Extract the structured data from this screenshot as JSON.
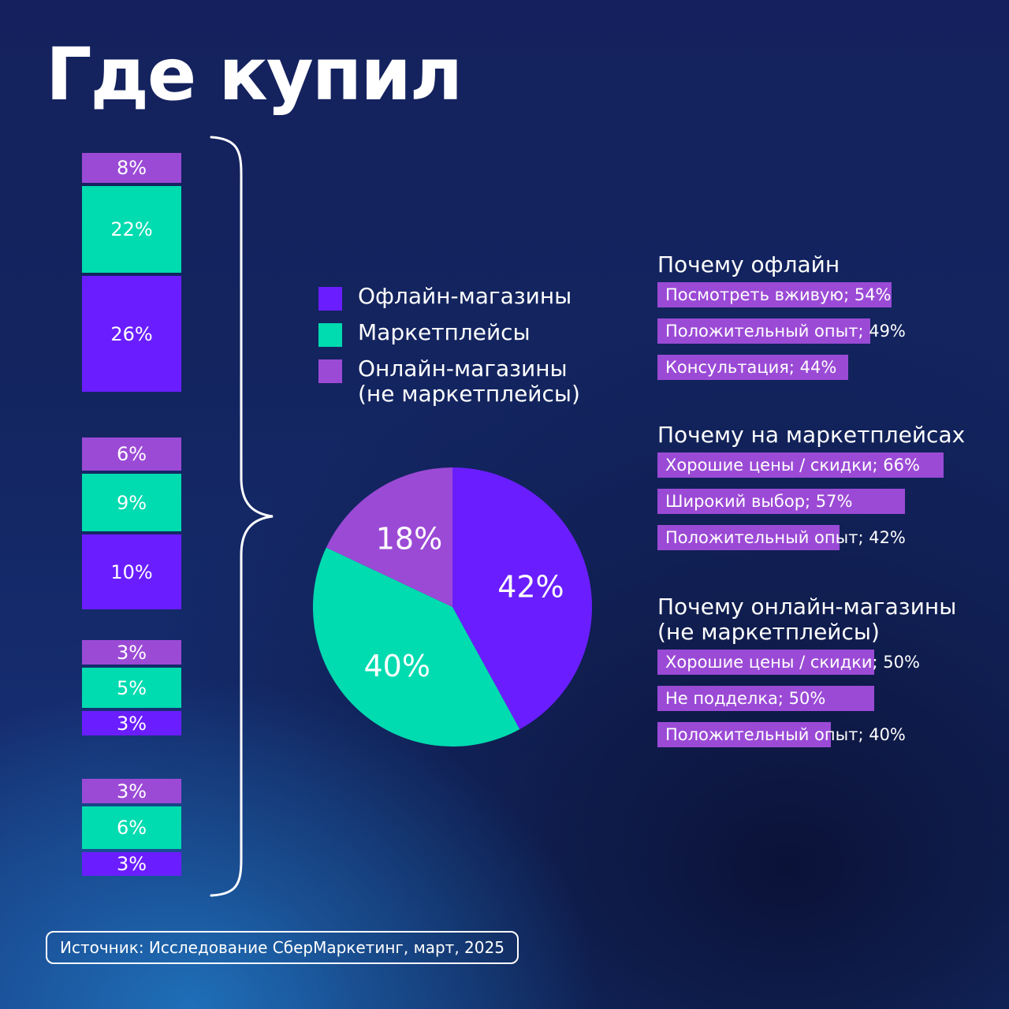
{
  "title": "Где купил",
  "colors": {
    "offline": "#6a1eff",
    "marketplaces": "#00dbb0",
    "online": "#9b4ad6"
  },
  "stacks": [
    {
      "online": "8%",
      "marketplaces": "22%",
      "offline": "26%"
    },
    {
      "online": "6%",
      "marketplaces": "9%",
      "offline": "10%"
    },
    {
      "online": "3%",
      "marketplaces": "5%",
      "offline": "3%"
    },
    {
      "online": "3%",
      "marketplaces": "6%",
      "offline": "3%"
    }
  ],
  "legend": [
    {
      "label": "Офлайн-магазины",
      "color": "#6a1eff"
    },
    {
      "label": "Маркетплейсы",
      "color": "#00dbb0"
    },
    {
      "label": "Онлайн-магазины\n(не маркетплейсы)",
      "color": "#9b4ad6"
    }
  ],
  "chart_data": {
    "type": "pie",
    "slices": [
      {
        "series": "Офлайн-магазины",
        "value": 42,
        "label": "42%",
        "color": "#6a1eff"
      },
      {
        "series": "Маркетплейсы",
        "value": 40,
        "label": "40%",
        "color": "#00dbb0"
      },
      {
        "series": "Онлайн-магазины (не маркетплейсы)",
        "value": 18,
        "label": "18%",
        "color": "#9b4ad6"
      }
    ]
  },
  "reasons": [
    {
      "title": "Почему офлайн",
      "items": [
        {
          "label": "Посмотреть вживую; 54%",
          "value": 54
        },
        {
          "label": "Положительный опыт; 49%",
          "value": 49
        },
        {
          "label": "Консультация; 44%",
          "value": 44
        }
      ]
    },
    {
      "title": "Почему на маркетплейсах",
      "items": [
        {
          "label": "Хорошие цены / скидки; 66%",
          "value": 66
        },
        {
          "label": "Широкий выбор; 57%",
          "value": 57
        },
        {
          "label": "Положительный опыт; 42%",
          "value": 42
        }
      ]
    },
    {
      "title": "Почему онлайн-магазины\n(не маркетплейсы)",
      "items": [
        {
          "label": "Хорошие цены / скидки; 50%",
          "value": 50
        },
        {
          "label": "Не подделка; 50%",
          "value": 50
        },
        {
          "label": "Положительный опыт; 40%",
          "value": 40
        }
      ]
    }
  ],
  "source": "Источник: Исследование СберМаркетинг, март, 2025"
}
